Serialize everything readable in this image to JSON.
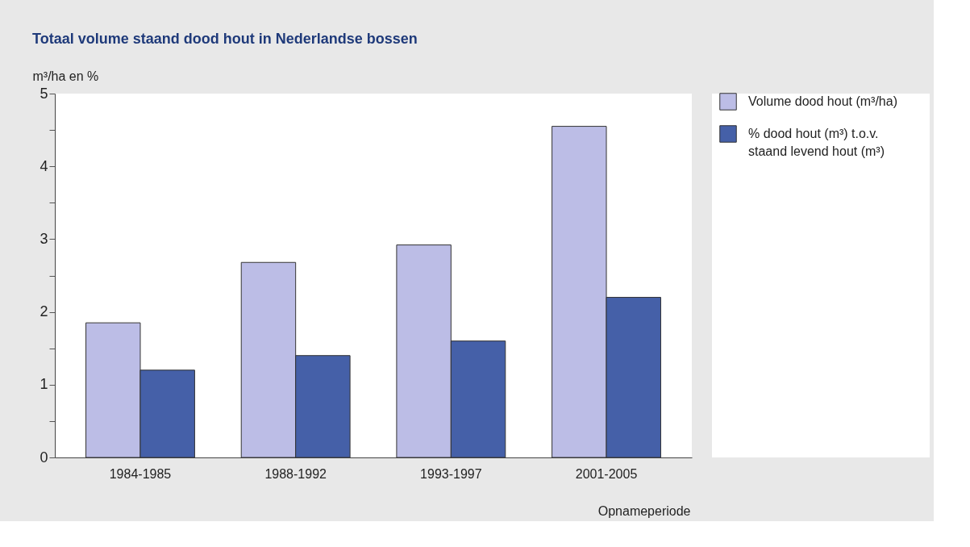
{
  "chart_data": {
    "type": "bar",
    "title": "Totaal volume staand dood hout in Nederlandse bossen",
    "ylabel": "m³/ha en %",
    "xlabel": "Opnameperiode",
    "categories": [
      "1984-1985",
      "1988-1992",
      "1993-1997",
      "2001-2005"
    ],
    "series": [
      {
        "name": "Volume dood hout (m³/ha)",
        "color": "#bcbde6",
        "values": [
          1.85,
          2.68,
          2.92,
          4.55
        ]
      },
      {
        "name": "% dood hout (m³) t.o.v. staand levend hout (m³)",
        "color": "#4560a8",
        "values": [
          1.2,
          1.4,
          1.6,
          2.2
        ]
      }
    ],
    "ylim": [
      0,
      5
    ],
    "yticks": [
      0,
      {
        "value": 0.5,
        "label": null
      },
      1,
      {
        "value": 1.5,
        "label": null
      },
      2,
      {
        "value": 2.5,
        "label": null
      },
      3,
      {
        "value": 3.5,
        "label": null
      },
      4,
      {
        "value": 4.5,
        "label": null
      },
      5
    ],
    "grid": false,
    "legend": "top right"
  }
}
